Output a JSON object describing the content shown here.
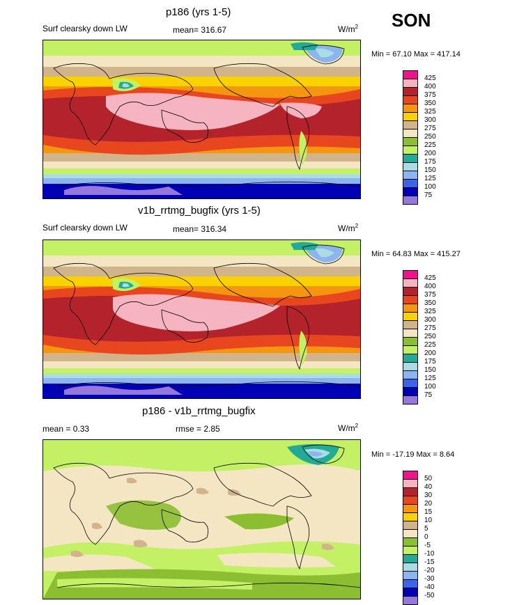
{
  "season": "SON",
  "panels": [
    {
      "title": "p186 (yrs 1-5)",
      "left_label": "Surf clearsky down LW",
      "center_label": "mean= 316.67",
      "units": "W/m",
      "units_sup": "2",
      "minmax": "Min =  67.10 Max = 417.14",
      "legend_labels": [
        "425",
        "400",
        "375",
        "350",
        "325",
        "300",
        "275",
        "250",
        "225",
        "200",
        "175",
        "150",
        "125",
        "100",
        "75"
      ],
      "legend_colors": [
        "#f0148c",
        "#f5b4c0",
        "#b4232c",
        "#e8461e",
        "#f59610",
        "#fad200",
        "#d2b48c",
        "#f5e6c3",
        "#8cbe32",
        "#c3f064",
        "#23aa96",
        "#aadce6",
        "#8cb4f0",
        "#3c64e6",
        "#0000b4",
        "#9678dc"
      ]
    },
    {
      "title": "v1b_rrtmg_bugfix (yrs 1-5)",
      "left_label": "Surf clearsky down LW",
      "center_label": "mean= 316.34",
      "units": "W/m",
      "units_sup": "2",
      "minmax": "Min =  64.83 Max = 415.27",
      "legend_labels": [
        "425",
        "400",
        "375",
        "350",
        "325",
        "300",
        "275",
        "250",
        "225",
        "200",
        "175",
        "150",
        "125",
        "100",
        "75"
      ],
      "legend_colors": [
        "#f0148c",
        "#f5b4c0",
        "#b4232c",
        "#e8461e",
        "#f59610",
        "#fad200",
        "#d2b48c",
        "#f5e6c3",
        "#8cbe32",
        "#c3f064",
        "#23aa96",
        "#aadce6",
        "#8cb4f0",
        "#3c64e6",
        "#0000b4",
        "#9678dc"
      ]
    },
    {
      "title": "p186 - v1b_rrtmg_bugfix",
      "left_label": "mean =   0.33",
      "center_label": "rmse =    2.85",
      "units": "W/m",
      "units_sup": "2",
      "minmax": "Min = -17.19 Max =   8.64",
      "legend_labels": [
        "50",
        "40",
        "30",
        "20",
        "15",
        "10",
        "5",
        "0",
        "-5",
        "-10",
        "-15",
        "-20",
        "-30",
        "-40",
        "-50"
      ],
      "legend_colors": [
        "#f0148c",
        "#f5b4c0",
        "#b4232c",
        "#e8461e",
        "#f59610",
        "#fad200",
        "#d2b48c",
        "#f5e6c3",
        "#8cbe32",
        "#c3f064",
        "#23aa96",
        "#aadce6",
        "#8cb4f0",
        "#3c64e6",
        "#0000b4",
        "#9678dc"
      ]
    }
  ],
  "chart_data": [
    {
      "type": "heatmap",
      "title": "p186 (yrs 1-5)",
      "subtitle": "Surf clearsky down LW",
      "mean": 316.67,
      "min": 67.1,
      "max": 417.14,
      "units": "W/m2",
      "contour_levels": [
        75,
        100,
        125,
        150,
        175,
        200,
        225,
        250,
        275,
        300,
        325,
        350,
        375,
        400,
        425
      ]
    },
    {
      "type": "heatmap",
      "title": "v1b_rrtmg_bugfix (yrs 1-5)",
      "subtitle": "Surf clearsky down LW",
      "mean": 316.34,
      "min": 64.83,
      "max": 415.27,
      "units": "W/m2",
      "contour_levels": [
        75,
        100,
        125,
        150,
        175,
        200,
        225,
        250,
        275,
        300,
        325,
        350,
        375,
        400,
        425
      ]
    },
    {
      "type": "heatmap",
      "title": "p186 - v1b_rrtmg_bugfix",
      "mean": 0.33,
      "rmse": 2.85,
      "min": -17.19,
      "max": 8.64,
      "units": "W/m2",
      "contour_levels": [
        -50,
        -40,
        -30,
        -20,
        -15,
        -10,
        -5,
        0,
        5,
        10,
        15,
        20,
        30,
        40,
        50
      ]
    }
  ]
}
